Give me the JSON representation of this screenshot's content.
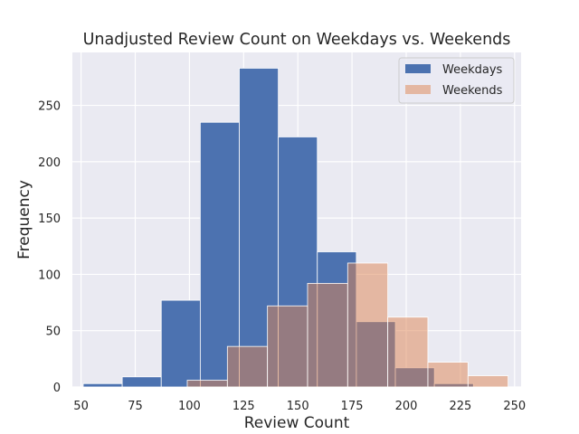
{
  "chart_data": {
    "type": "bar",
    "histogram": true,
    "title": "Unadjusted Review Count on Weekdays vs. Weekends",
    "xlabel": "Review Count",
    "ylabel": "Frequency",
    "xlim": [
      46,
      253
    ],
    "ylim": [
      0,
      297
    ],
    "xticks": [
      50,
      75,
      100,
      125,
      150,
      175,
      200,
      225,
      250
    ],
    "yticks": [
      0,
      50,
      100,
      150,
      200,
      250
    ],
    "xtick_labels": [
      "50",
      "75",
      "100",
      "125",
      "150",
      "175",
      "200",
      "225",
      "250"
    ],
    "ytick_labels": [
      "0",
      "50",
      "100",
      "150",
      "200",
      "250"
    ],
    "grid": true,
    "legend_position": "top-right",
    "series": [
      {
        "name": "Weekdays",
        "color": "#4c72b0",
        "opacity": 1.0,
        "bin_edges": [
          51,
          69,
          87,
          105,
          123,
          141,
          159,
          177,
          195,
          213,
          231
        ],
        "values": [
          3,
          9,
          77,
          235,
          283,
          222,
          120,
          58,
          17,
          3
        ]
      },
      {
        "name": "Weekends",
        "color": "#dd8452",
        "opacity": 0.5,
        "bin_edges": [
          99,
          117.5,
          136,
          154.5,
          173,
          191.5,
          210,
          228.5,
          247
        ],
        "values": [
          6,
          36,
          72,
          92,
          110,
          62,
          22,
          10
        ]
      }
    ]
  }
}
